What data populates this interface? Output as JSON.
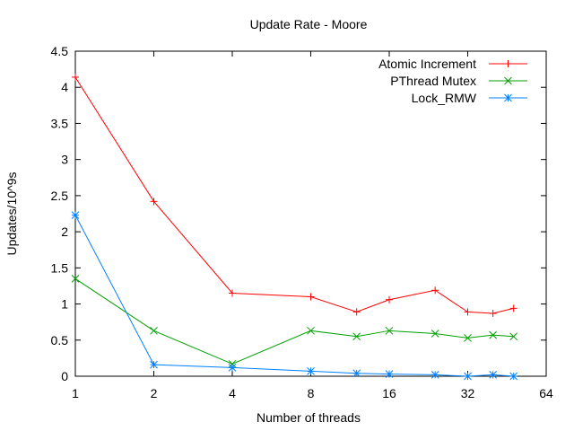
{
  "chart_data": {
    "type": "line",
    "title": "Update Rate - Moore",
    "xlabel": "Number of threads",
    "ylabel": "Updates/10^9s",
    "x_scale": "log2",
    "xlim": [
      1,
      64
    ],
    "ylim": [
      0,
      4.5
    ],
    "x_ticks": [
      1,
      2,
      4,
      8,
      16,
      32,
      64
    ],
    "x_tick_labels": [
      "1",
      "2",
      "4",
      "8",
      "16",
      "32",
      "64"
    ],
    "y_ticks": [
      0,
      0.5,
      1,
      1.5,
      2,
      2.5,
      3,
      3.5,
      4,
      4.5
    ],
    "y_tick_labels": [
      "0",
      "0.5",
      "1",
      "1.5",
      "2",
      "2.5",
      "3",
      "3.5",
      "4",
      "4.5"
    ],
    "grid": false,
    "legend_position": "top-right",
    "series": [
      {
        "name": "Atomic Increment",
        "color": "#ff0000",
        "marker": "plus",
        "x": [
          1,
          2,
          4,
          8,
          12,
          16,
          24,
          32,
          40,
          48
        ],
        "y": [
          4.14,
          2.42,
          1.15,
          1.1,
          0.89,
          1.06,
          1.19,
          0.89,
          0.87,
          0.94
        ]
      },
      {
        "name": "PThread Mutex",
        "color": "#00a000",
        "marker": "cross",
        "x": [
          1,
          2,
          4,
          8,
          12,
          16,
          24,
          32,
          40,
          48
        ],
        "y": [
          1.35,
          0.63,
          0.17,
          0.63,
          0.55,
          0.63,
          0.59,
          0.53,
          0.57,
          0.55
        ]
      },
      {
        "name": "Lock_RMW",
        "color": "#0080ff",
        "marker": "star",
        "x": [
          1,
          2,
          4,
          8,
          12,
          16,
          24,
          32,
          40,
          48
        ],
        "y": [
          2.23,
          0.16,
          0.12,
          0.07,
          0.04,
          0.03,
          0.02,
          0.0,
          0.02,
          0.0
        ]
      }
    ]
  }
}
